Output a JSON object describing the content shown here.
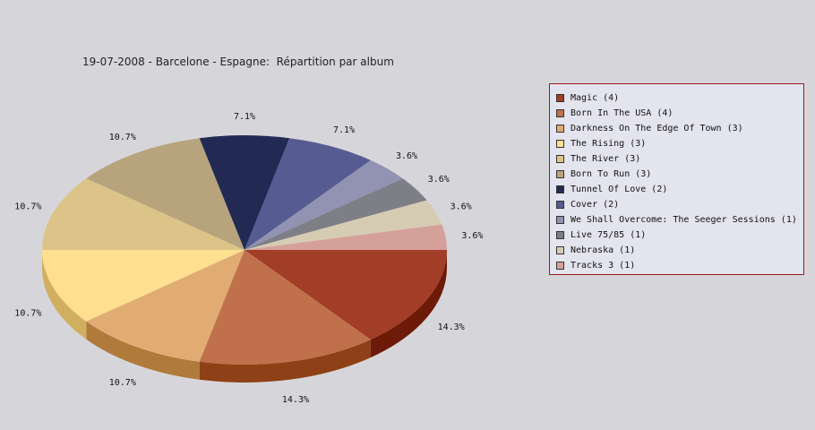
{
  "chart_data": {
    "type": "pie",
    "title": "19-07-2008 - Barcelone - Espagne:  Répartition par album",
    "slices": [
      {
        "label": "Magic (4)",
        "value": 4,
        "percent": "14.3%",
        "color": "#a23d28",
        "side": "#6e1a08"
      },
      {
        "label": "Born In The USA (4)",
        "value": 4,
        "percent": "14.3%",
        "color": "#c0704a",
        "side": "#8e4116"
      },
      {
        "label": "Darkness On The Edge Of Town (3)",
        "value": 3,
        "percent": "10.7%",
        "color": "#e0ac72",
        "side": "#b07a3a"
      },
      {
        "label": "The Rising (3)",
        "value": 3,
        "percent": "10.7%",
        "color": "#ffdf90",
        "side": "#d0b060"
      },
      {
        "label": "The River (3)",
        "value": 3,
        "percent": "10.7%",
        "color": "#dcc488",
        "side": "#b09a60"
      },
      {
        "label": "Born To Run (3)",
        "value": 3,
        "percent": "10.7%",
        "color": "#b8a47c",
        "side": "#8e7a56"
      },
      {
        "label": "Tunnel Of Love (2)",
        "value": 2,
        "percent": "7.1%",
        "color": "#222a54",
        "side": "#10153a"
      },
      {
        "label": "Cover (2)",
        "value": 2,
        "percent": "7.1%",
        "color": "#565c92",
        "side": "#373c6e"
      },
      {
        "label": "We Shall Overcome: The Seeger Sessions (1)",
        "value": 1,
        "percent": "3.6%",
        "color": "#9292b2",
        "side": "#6a6a8a"
      },
      {
        "label": "Live 75/85 (1)",
        "value": 1,
        "percent": "3.6%",
        "color": "#7e7e86",
        "side": "#5a5a62"
      },
      {
        "label": "Nebraska (1)",
        "value": 1,
        "percent": "3.6%",
        "color": "#d6ccb4",
        "side": "#aaa08a"
      },
      {
        "label": "Tracks 3 (1)",
        "value": 1,
        "percent": "3.6%",
        "color": "#d6a09a",
        "side": "#a8706a"
      }
    ],
    "legend_position": "right"
  }
}
